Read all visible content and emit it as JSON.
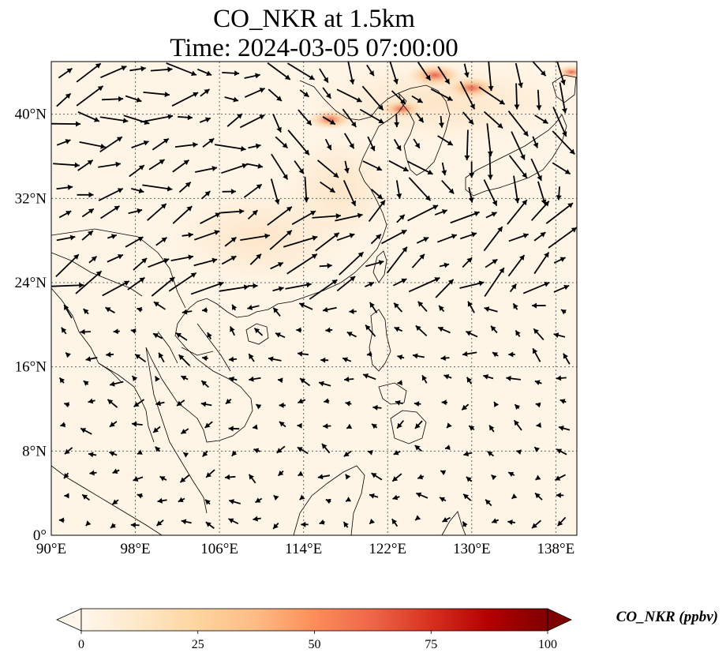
{
  "map": {
    "title_line1": "CO_NKR at 1.5km",
    "title_line2": "Time: 2024-03-05 07:00:00",
    "extent": {
      "lon_min": 90,
      "lon_max": 140,
      "lat_min": 0,
      "lat_max": 45
    },
    "lon_ticks": [
      90,
      98,
      106,
      114,
      122,
      130,
      138
    ],
    "lon_tick_labels": [
      "90°E",
      "98°E",
      "106°E",
      "114°E",
      "122°E",
      "130°E",
      "138°E"
    ],
    "lat_ticks": [
      0,
      8,
      16,
      24,
      32,
      40
    ],
    "lat_tick_labels": [
      "0°",
      "8°N",
      "16°N",
      "24°N",
      "32°N",
      "40°N"
    ],
    "gridlines": true,
    "field_colormap": "OrRd",
    "background_color": "#fff5e6",
    "hotspots": [
      {
        "lon": 116.5,
        "lat": 39.5,
        "value": 35
      },
      {
        "lon": 123.3,
        "lat": 40.5,
        "value": 30
      },
      {
        "lon": 126.5,
        "lat": 43.7,
        "value": 45
      },
      {
        "lon": 130.0,
        "lat": 42.5,
        "value": 40
      },
      {
        "lon": 139.5,
        "lat": 44.0,
        "value": 20
      }
    ]
  },
  "colorbar": {
    "label": "CO_NKR (ppbv)",
    "min": 0,
    "max": 100,
    "ticks": [
      0,
      25,
      50,
      75,
      100
    ],
    "tick_labels": [
      "0",
      "25",
      "50",
      "75",
      "100"
    ],
    "extend": "both",
    "colors": [
      "#fff7ec",
      "#fee8c8",
      "#fdd49e",
      "#fdbb84",
      "#fc8d59",
      "#ef6548",
      "#d7301f",
      "#b30000",
      "#7f0000"
    ]
  }
}
